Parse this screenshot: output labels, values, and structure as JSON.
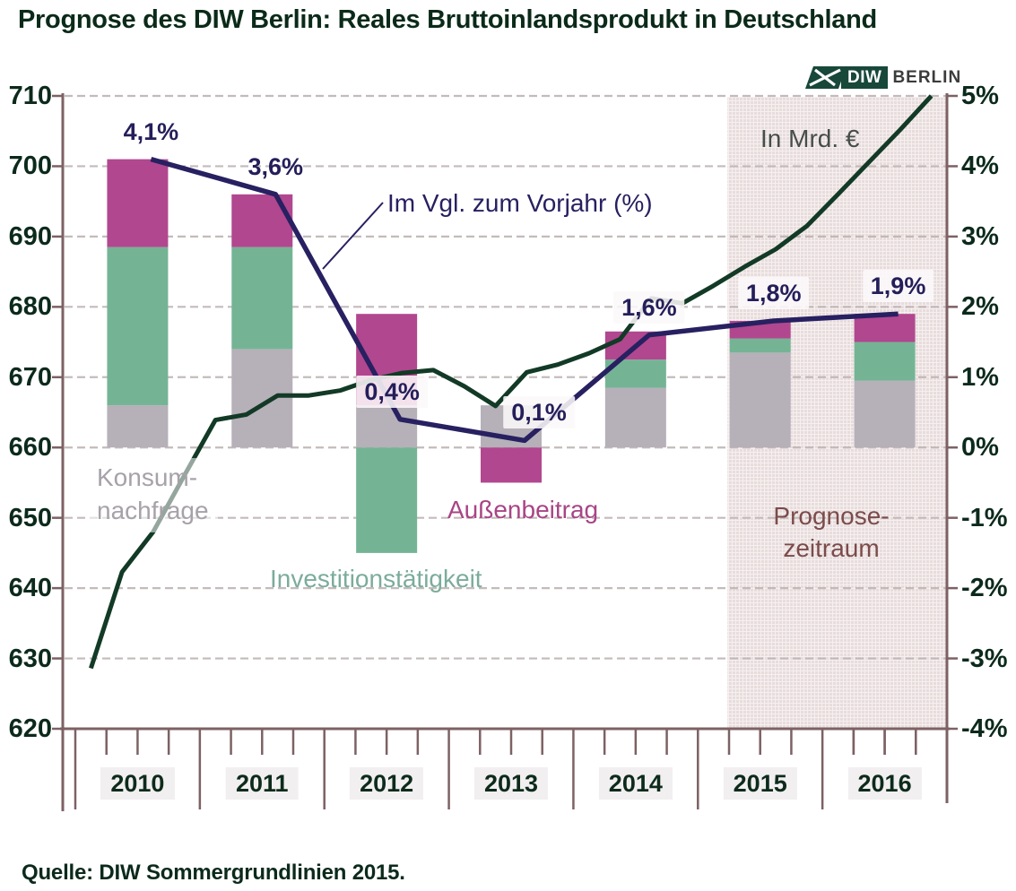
{
  "page": {
    "title": "Prognose des DIW Berlin: Reales Bruttoinlandsprodukt in Deutschland",
    "source": "Quelle: DIW Sommergrundlinien 2015."
  },
  "logo": {
    "diw": "DIW",
    "berlin": "BERLIN"
  },
  "annotations": {
    "yoy_line_label": "Im Vgl. zum Vorjahr (%)",
    "gdp_line_label": "In Mrd. €",
    "konsum_line1": "Konsum-",
    "konsum_line2": "nachfrage",
    "invest_label": "Investitionstätigkeit",
    "aussen_label": "Außenbeitrag",
    "forecast_line1": "Prognose-",
    "forecast_line2": "zeitraum"
  },
  "chart_data": {
    "type": "combo-stacked-bar-line",
    "title": "Prognose des DIW Berlin: Reales Bruttoinlandsprodukt in Deutschland",
    "categories": [
      "2010",
      "2011",
      "2012",
      "2013",
      "2014",
      "2015",
      "2016"
    ],
    "left_axis": {
      "unit": "Mrd. €",
      "range": [
        620,
        710
      ],
      "ticks": [
        710,
        700,
        690,
        680,
        670,
        660,
        650,
        640,
        630,
        620
      ]
    },
    "right_axis": {
      "unit": "%",
      "range": [
        -4,
        5
      ],
      "tick_labels": [
        "5%",
        "4%",
        "3%",
        "2%",
        "1%",
        "0%",
        "-1%",
        "-2%",
        "-3%",
        "-4%"
      ],
      "tick_values": [
        5,
        4,
        3,
        2,
        1,
        0,
        -1,
        -2,
        -3,
        -4
      ]
    },
    "grid": "dashed-horizontal",
    "bar_series": [
      {
        "name": "Konsumnachfrage",
        "color": "#b6b0b8",
        "values": [
          0.6,
          1.4,
          0.6,
          0.6,
          0.85,
          1.35,
          0.95
        ]
      },
      {
        "name": "Investitionstätigkeit",
        "color": "#74b494",
        "values": [
          2.25,
          1.45,
          -1.5,
          0,
          0.4,
          0.2,
          0.55
        ]
      },
      {
        "name": "Außenbeitrag",
        "color": "#b1478f",
        "values": [
          1.25,
          0.75,
          1.3,
          -0.5,
          0.4,
          0.25,
          0.4
        ]
      }
    ],
    "yoy_series": {
      "name": "Im Vgl. zum Vorjahr (%)",
      "color": "#272061",
      "axis": "right",
      "values": [
        4.1,
        3.6,
        0.4,
        0.1,
        1.6,
        1.8,
        1.9
      ],
      "point_labels": [
        "4,1%",
        "3,6%",
        "0,4%",
        "0,1%",
        "1,6%",
        "1,8%",
        "1,9%"
      ],
      "label_boxed": [
        false,
        false,
        true,
        true,
        true,
        true,
        true
      ]
    },
    "gdp_series": {
      "name": "In Mrd. €",
      "color": "#123a26",
      "axis": "left",
      "frequency": "quarterly",
      "start": "2010-Q1",
      "values": [
        628.6,
        642.3,
        648.0,
        656.0,
        663.9,
        664.7,
        667.4,
        667.4,
        668.1,
        669.6,
        670.6,
        671.0,
        668.7,
        665.9,
        670.7,
        671.8,
        673.4,
        675.4,
        681.2,
        680.5,
        683.0,
        685.7,
        688.2,
        691.5,
        696.0,
        700.6,
        705.2,
        710.0
      ]
    },
    "forecast": {
      "label": "Prognose-zeitraum",
      "from": "2015",
      "to": "2016"
    }
  },
  "colors": {
    "bar_konsum": "#b6b0b8",
    "bar_invest": "#74b494",
    "bar_aussen": "#b1478f",
    "line_yoy": "#272061",
    "line_gdp": "#123a26",
    "axis_spine": "#7d6164",
    "gridline": "#beb4b4",
    "forecast_band": "#e8dcdc",
    "forecast_band_grid": "#f6f0f0",
    "title_text": "#0b2a19"
  }
}
